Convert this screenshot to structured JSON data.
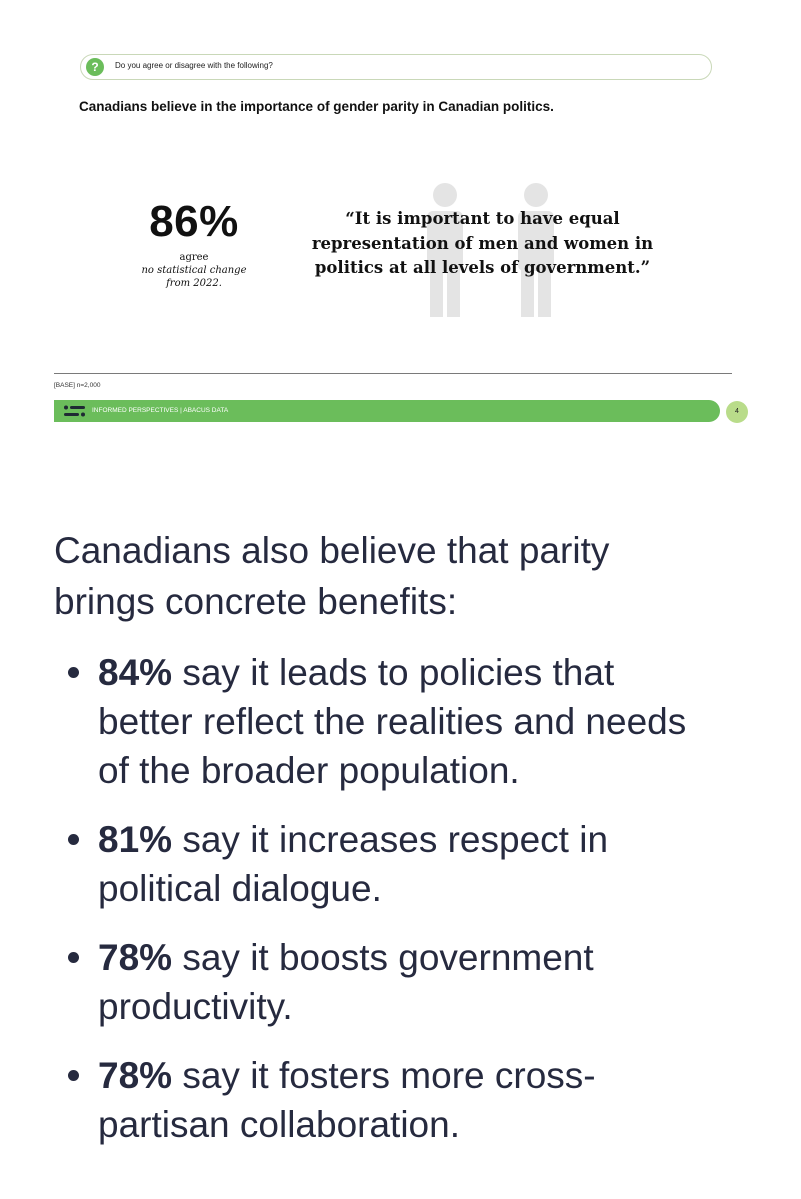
{
  "slide": {
    "question": "Do you agree or disagree with the following?",
    "question_icon": "question-mark-icon",
    "headline": "Canadians believe in the importance of gender parity in Canadian politics.",
    "stat": {
      "value": "86%",
      "label": "agree",
      "note_line1": "no statistical change",
      "note_line2": "from 2022."
    },
    "quote": {
      "line1": "“It is important to have equal",
      "line2": "representation of men and women in",
      "line3": "politics at all levels of government.”"
    },
    "base_note": "[BASE] n=2,000",
    "footer_text": "INFORMED PERSPECTIVES | ABACUS DATA",
    "page_number": "4",
    "colors": {
      "brand_green": "#6bbd5b",
      "page_circle": "#b9dc8a",
      "figure_gray": "#e4e4e4",
      "text_dark": "#262a3f"
    }
  },
  "article": {
    "intro_line1": "Canadians also believe that parity",
    "intro_line2": "brings concrete benefits:",
    "benefits": [
      {
        "pct": "84%",
        "line1": " say it leads to policies that",
        "line2": "better reflect the realities and needs",
        "line3": "of the broader population."
      },
      {
        "pct": "81%",
        "line1": " say it increases respect in",
        "line2": "political dialogue."
      },
      {
        "pct": "78%",
        "line1": " say it boosts government",
        "line2": "productivity."
      },
      {
        "pct": "78%",
        "line1": " say it fosters more cross-",
        "line2": "partisan collaboration."
      }
    ]
  }
}
